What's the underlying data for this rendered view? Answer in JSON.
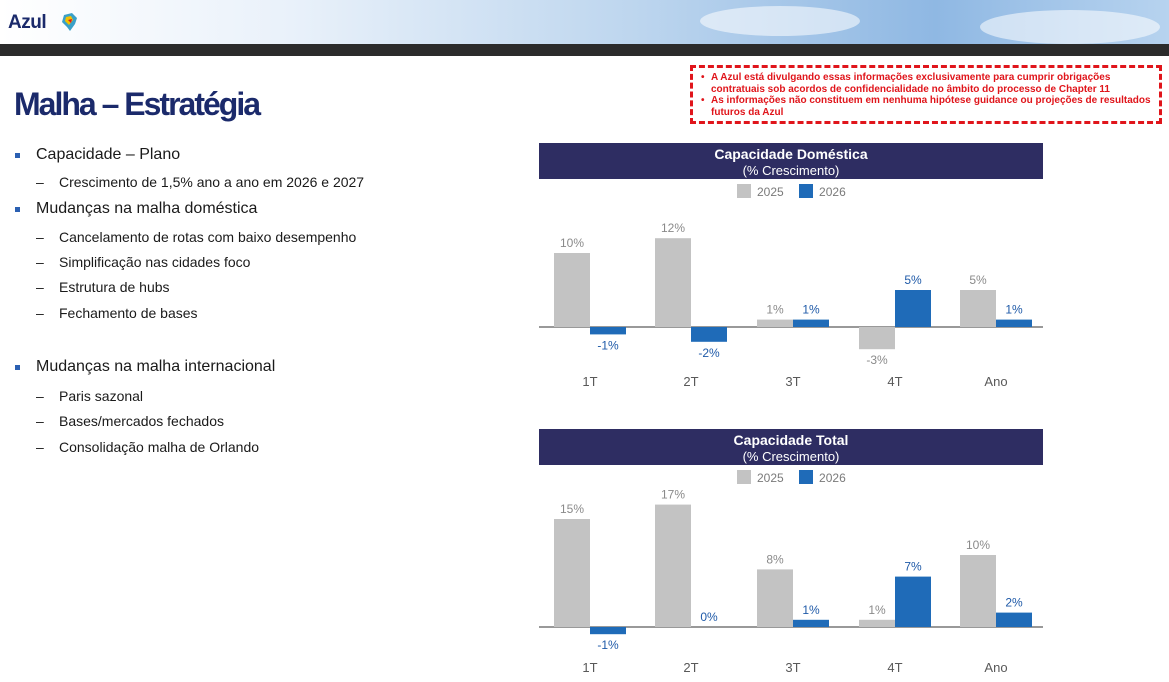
{
  "header": {
    "logo_text": "Azul"
  },
  "title": "Malha – Estratégia",
  "disclaimer": [
    "A Azul está divulgando essas informações exclusivamente para cumprir obrigações contratuais sob acordos de confidencialidade no âmbito do processo de Chapter 11",
    "As informações não constituem em nenhuma hipótese guidance ou projeções de resultados futuros da Azul"
  ],
  "bullets": [
    {
      "text": "Capacidade – Plano",
      "subs": [
        "Crescimento de 1,5% ano a ano em 2026 e 2027"
      ]
    },
    {
      "text": "Mudanças na malha doméstica",
      "subs": [
        "Cancelamento de rotas com baixo desempenho",
        "Simplificação nas cidades foco",
        "Estrutura de hubs",
        "Fechamento de bases"
      ]
    },
    {
      "text": "Mudanças na malha internacional",
      "subs": [
        "Paris sazonal",
        "Bases/mercados fechados",
        "Consolidação malha de Orlando"
      ]
    }
  ],
  "colors": {
    "series_2025": "#c3c3c3",
    "series_2026": "#1f6bb8",
    "header_bg": "#2e2d62",
    "title": "#1b2a6b",
    "disclaimer": "#e0151b"
  },
  "chart_data": [
    {
      "type": "bar",
      "title": "Capacidade Doméstica",
      "subtitle": "(% Crescimento)",
      "categories": [
        "1T",
        "2T",
        "3T",
        "4T",
        "Ano"
      ],
      "series": [
        {
          "name": "2025",
          "values": [
            10,
            12,
            1,
            -3,
            5
          ],
          "labels": [
            "10%",
            "12%",
            "1%",
            "-3%",
            "5%"
          ]
        },
        {
          "name": "2026",
          "values": [
            -1,
            -2,
            1,
            5,
            1
          ],
          "labels": [
            "-1%",
            "-2%",
            "1%",
            "5%",
            "1%"
          ]
        }
      ],
      "legend": "top",
      "grid": false
    },
    {
      "type": "bar",
      "title": "Capacidade Total",
      "subtitle": "(% Crescimento)",
      "categories": [
        "1T",
        "2T",
        "3T",
        "4T",
        "Ano"
      ],
      "series": [
        {
          "name": "2025",
          "values": [
            15,
            17,
            8,
            1,
            10
          ],
          "labels": [
            "15%",
            "17%",
            "8%",
            "1%",
            "10%"
          ]
        },
        {
          "name": "2026",
          "values": [
            -1,
            0,
            1,
            7,
            2
          ],
          "labels": [
            "-1%",
            "0%",
            "1%",
            "7%",
            "2%"
          ]
        }
      ],
      "legend": "top",
      "grid": false
    }
  ]
}
